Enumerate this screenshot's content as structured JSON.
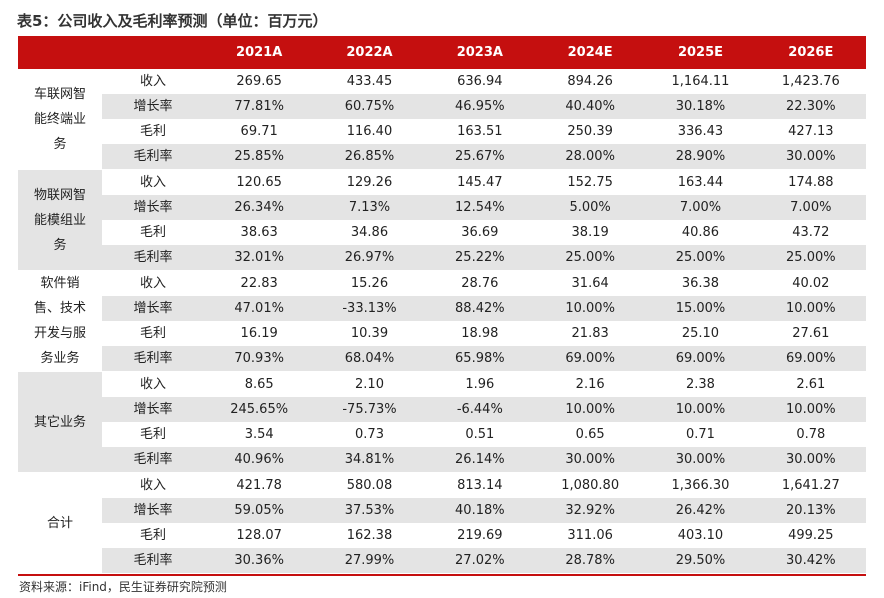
{
  "title": "表5：公司收入及毛利率预测（单位：百万元）",
  "header": [
    "",
    "",
    "2021A",
    "2022A",
    "2023A",
    "2024E",
    "2025E",
    "2026E"
  ],
  "segments": [
    {
      "name": "车联网智能终端业务",
      "rows": [
        {
          "metric": "收入",
          "values": [
            "269.65",
            "433.45",
            "636.94",
            "894.26",
            "1,164.11",
            "1,423.76"
          ]
        },
        {
          "metric": "增长率",
          "values": [
            "77.81%",
            "60.75%",
            "46.95%",
            "40.40%",
            "30.18%",
            "22.30%"
          ]
        },
        {
          "metric": "毛利",
          "values": [
            "69.71",
            "116.40",
            "163.51",
            "250.39",
            "336.43",
            "427.13"
          ]
        },
        {
          "metric": "毛利率",
          "values": [
            "25.85%",
            "26.85%",
            "25.67%",
            "28.00%",
            "28.90%",
            "30.00%"
          ]
        }
      ]
    },
    {
      "name": "物联网智能模组业务",
      "rows": [
        {
          "metric": "收入",
          "values": [
            "120.65",
            "129.26",
            "145.47",
            "152.75",
            "163.44",
            "174.88"
          ]
        },
        {
          "metric": "增长率",
          "values": [
            "26.34%",
            "7.13%",
            "12.54%",
            "5.00%",
            "7.00%",
            "7.00%"
          ]
        },
        {
          "metric": "毛利",
          "values": [
            "38.63",
            "34.86",
            "36.69",
            "38.19",
            "40.86",
            "43.72"
          ]
        },
        {
          "metric": "毛利率",
          "values": [
            "32.01%",
            "26.97%",
            "25.22%",
            "25.00%",
            "25.00%",
            "25.00%"
          ]
        }
      ]
    },
    {
      "name": "软件销售、技术开发与服务业务",
      "rows": [
        {
          "metric": "收入",
          "values": [
            "22.83",
            "15.26",
            "28.76",
            "31.64",
            "36.38",
            "40.02"
          ]
        },
        {
          "metric": "增长率",
          "values": [
            "47.01%",
            "-33.13%",
            "88.42%",
            "10.00%",
            "15.00%",
            "10.00%"
          ]
        },
        {
          "metric": "毛利",
          "values": [
            "16.19",
            "10.39",
            "18.98",
            "21.83",
            "25.10",
            "27.61"
          ]
        },
        {
          "metric": "毛利率",
          "values": [
            "70.93%",
            "68.04%",
            "65.98%",
            "69.00%",
            "69.00%",
            "69.00%"
          ]
        }
      ]
    },
    {
      "name": "其它业务",
      "rows": [
        {
          "metric": "收入",
          "values": [
            "8.65",
            "2.10",
            "1.96",
            "2.16",
            "2.38",
            "2.61"
          ]
        },
        {
          "metric": "增长率",
          "values": [
            "245.65%",
            "-75.73%",
            "-6.44%",
            "10.00%",
            "10.00%",
            "10.00%"
          ]
        },
        {
          "metric": "毛利",
          "values": [
            "3.54",
            "0.73",
            "0.51",
            "0.65",
            "0.71",
            "0.78"
          ]
        },
        {
          "metric": "毛利率",
          "values": [
            "40.96%",
            "34.81%",
            "26.14%",
            "30.00%",
            "30.00%",
            "30.00%"
          ]
        }
      ]
    },
    {
      "name": "合计",
      "rows": [
        {
          "metric": "收入",
          "values": [
            "421.78",
            "580.08",
            "813.14",
            "1,080.80",
            "1,366.30",
            "1,641.27"
          ]
        },
        {
          "metric": "增长率",
          "values": [
            "59.05%",
            "37.53%",
            "40.18%",
            "32.92%",
            "26.42%",
            "20.13%"
          ]
        },
        {
          "metric": "毛利",
          "values": [
            "128.07",
            "162.38",
            "219.69",
            "311.06",
            "403.10",
            "499.25"
          ]
        },
        {
          "metric": "毛利率",
          "values": [
            "30.36%",
            "27.99%",
            "27.02%",
            "28.78%",
            "29.50%",
            "30.42%"
          ]
        }
      ]
    }
  ],
  "source": "资料来源：iFind，民生证券研究院预测",
  "colors": {
    "accent": "#c50f0f",
    "stripe": "#e4e4e4"
  }
}
